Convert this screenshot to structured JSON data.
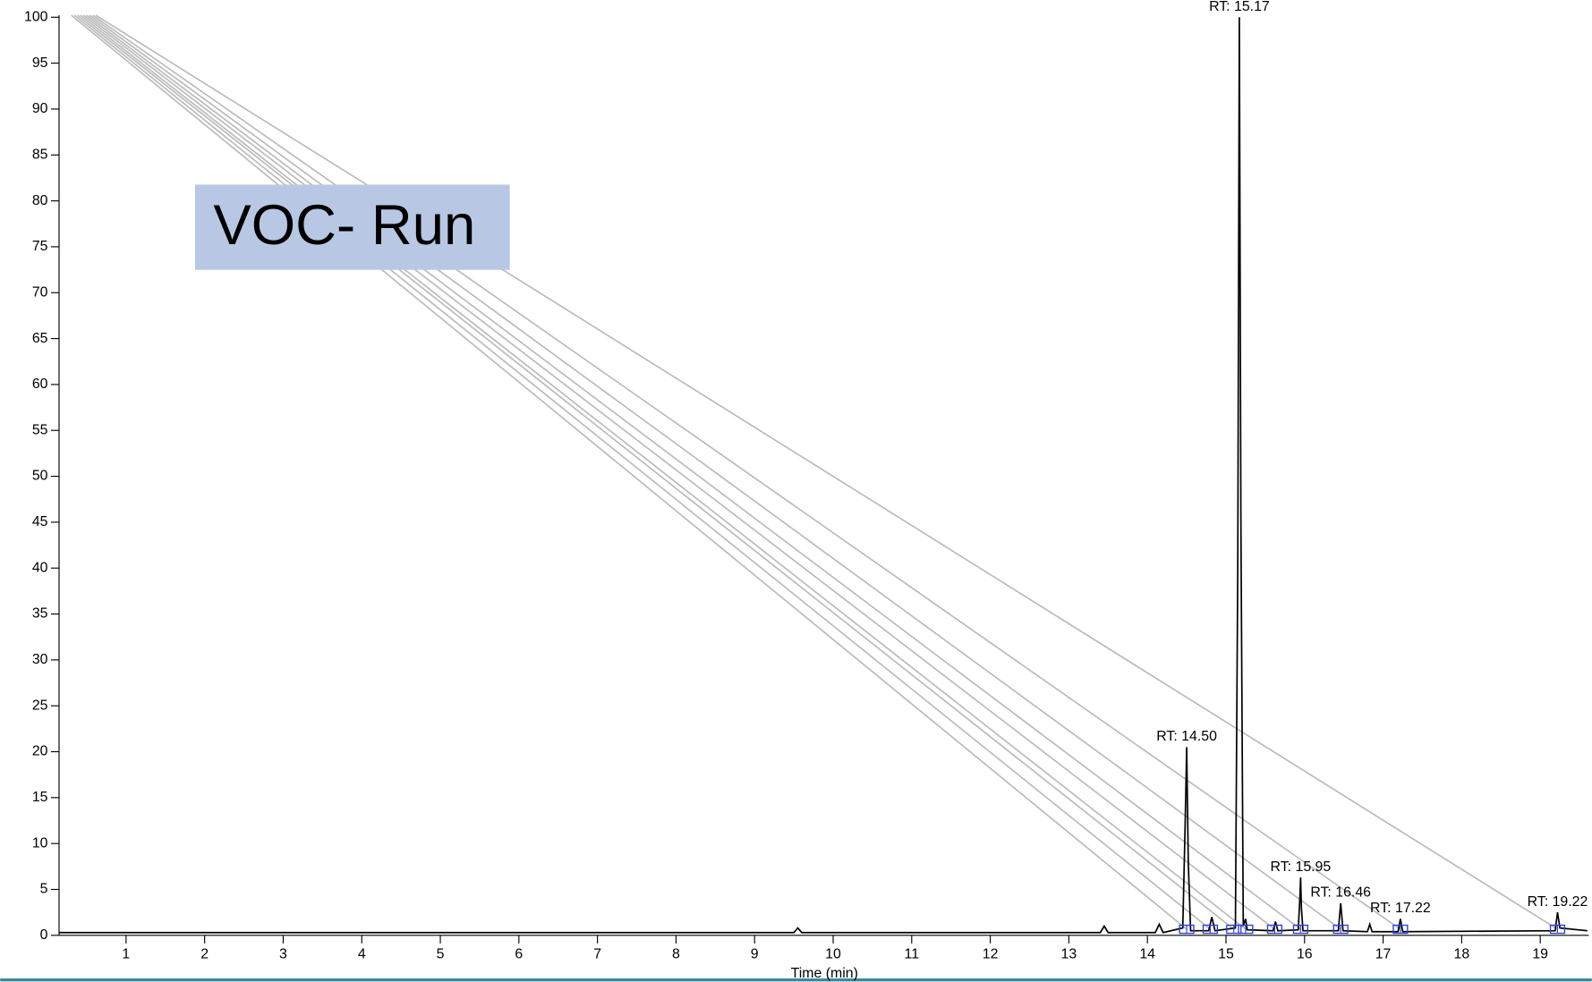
{
  "chart_data": {
    "type": "line",
    "label_box": "VOC- Run",
    "xlabel": "Time (min)",
    "x": [
      0.15,
      9.5,
      9.55,
      9.6,
      13.4,
      13.45,
      13.5,
      14.1,
      14.15,
      14.2,
      14.45,
      14.48,
      14.5,
      14.52,
      14.55,
      14.78,
      14.82,
      14.86,
      15.12,
      15.15,
      15.17,
      15.19,
      15.22,
      15.25,
      15.27,
      15.6,
      15.63,
      15.66,
      15.92,
      15.94,
      15.95,
      15.96,
      15.98,
      16.43,
      16.46,
      16.49,
      16.8,
      16.83,
      16.86,
      17.19,
      17.22,
      17.25,
      19.19,
      19.22,
      19.25,
      19.6
    ],
    "series": [
      {
        "color": "#000000",
        "values": [
          0.3,
          0.3,
          0.8,
          0.3,
          0.3,
          1.0,
          0.3,
          0.3,
          1.2,
          0.3,
          0.8,
          12,
          20.5,
          8,
          0.5,
          0.5,
          2.0,
          0.5,
          0.8,
          40,
          100,
          45,
          1.0,
          1.8,
          0.6,
          0.5,
          1.5,
          0.5,
          0.6,
          4,
          6.3,
          3,
          0.5,
          0.5,
          3.5,
          0.5,
          0.4,
          1.2,
          0.4,
          0.4,
          1.8,
          0.4,
          0.5,
          2.5,
          0.8,
          0.5
        ]
      }
    ],
    "annotations": [
      {
        "text": "RT: 14.50",
        "x": 14.5,
        "y": 20.5
      },
      {
        "text": "RT: 15.17",
        "x": 15.17,
        "y": 100
      },
      {
        "text": "RT: 15.95",
        "x": 15.95,
        "y": 6.3
      },
      {
        "text": "RT: 16.46",
        "x": 16.46,
        "y": 3.5
      },
      {
        "text": "RT: 17.22",
        "x": 17.22,
        "y": 1.8
      },
      {
        "text": "RT: 19.22",
        "x": 19.22,
        "y": 2.5
      }
    ],
    "peak_markers": [
      14.5,
      14.8,
      15.1,
      15.25,
      15.62,
      15.95,
      16.46,
      17.22,
      19.22
    ],
    "marker_color": "#2a3fd8",
    "xlim": [
      0.15,
      19.6
    ],
    "ylim": [
      0,
      100
    ],
    "xticks": [
      1,
      2,
      3,
      4,
      5,
      6,
      7,
      8,
      9,
      10,
      11,
      12,
      13,
      14,
      15,
      16,
      17,
      18,
      19
    ],
    "yticks": [
      0,
      5,
      10,
      15,
      20,
      25,
      30,
      35,
      40,
      45,
      50,
      55,
      60,
      65,
      70,
      75,
      80,
      85,
      90,
      95,
      100
    ]
  }
}
